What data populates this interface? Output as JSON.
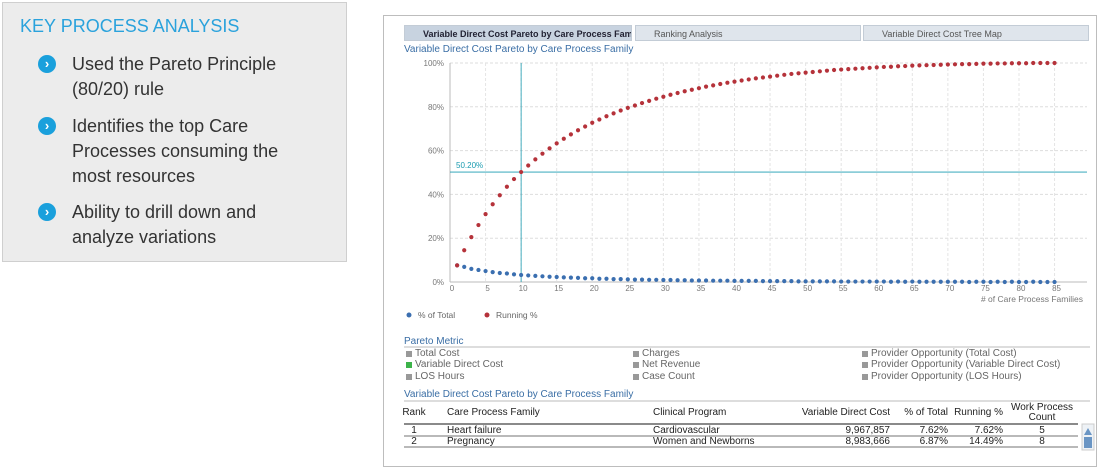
{
  "panel": {
    "title": "KEY PROCESS ANALYSIS",
    "bullets": [
      "Used the Pareto Principle (80/20) rule",
      "Identifies the top Care Processes consuming the most resources",
      "Ability to drill down and analyze variations"
    ]
  },
  "tabs": [
    "Variable Direct Cost Pareto by Care Process Family",
    "Ranking Analysis",
    "Variable Direct Cost Tree Map"
  ],
  "chart_data": {
    "type": "scatter",
    "title": "Variable Direct Cost Pareto by Care Process Family",
    "x_label": "# of Care Process Families",
    "x": [
      1,
      2,
      3,
      4,
      5,
      6,
      7,
      8,
      9,
      10,
      11,
      12,
      13,
      14,
      15,
      16,
      17,
      18,
      19,
      20,
      21,
      22,
      23,
      24,
      25,
      26,
      27,
      28,
      29,
      30,
      31,
      32,
      33,
      34,
      35,
      36,
      37,
      38,
      39,
      40,
      41,
      42,
      43,
      44,
      45,
      46,
      47,
      48,
      49,
      50,
      51,
      52,
      53,
      54,
      55,
      56,
      57,
      58,
      59,
      60,
      61,
      62,
      63,
      64,
      65,
      66,
      67,
      68,
      69,
      70,
      71,
      72,
      73,
      74,
      75,
      76,
      77,
      78,
      79,
      80,
      81,
      82,
      83,
      84,
      85
    ],
    "series": [
      {
        "name": "% of Total",
        "color": "#3b6fb0",
        "values": [
          7.6,
          6.9,
          6.0,
          5.5,
          5.0,
          4.5,
          4.1,
          3.9,
          3.5,
          3.2,
          3.0,
          2.8,
          2.6,
          2.4,
          2.3,
          2.1,
          2.0,
          1.9,
          1.7,
          1.7,
          1.5,
          1.5,
          1.3,
          1.3,
          1.2,
          1.1,
          1.1,
          1.0,
          1.0,
          0.9,
          0.9,
          0.8,
          0.8,
          0.7,
          0.7,
          0.7,
          0.6,
          0.6,
          0.6,
          0.5,
          0.5,
          0.5,
          0.5,
          0.4,
          0.4,
          0.4,
          0.4,
          0.4,
          0.3,
          0.3,
          0.3,
          0.3,
          0.3,
          0.3,
          0.2,
          0.2,
          0.2,
          0.2,
          0.2,
          0.2,
          0.2,
          0.1,
          0.2,
          0.1,
          0.2,
          0.1,
          0.1,
          0.1,
          0.1,
          0.1,
          0.1,
          0.1,
          0,
          0.1,
          0.1,
          0,
          0.1,
          0,
          0.1,
          0,
          0,
          0.1,
          0,
          0,
          0
        ]
      },
      {
        "name": "Running %",
        "color": "#b5323a",
        "values": [
          7.6,
          14.5,
          20.5,
          26.0,
          31.0,
          35.5,
          39.6,
          43.5,
          47.0,
          50.2,
          53.2,
          56.0,
          58.6,
          61.0,
          63.3,
          65.4,
          67.4,
          69.3,
          71.0,
          72.7,
          74.2,
          75.7,
          77.0,
          78.3,
          79.5,
          80.6,
          81.7,
          82.7,
          83.7,
          84.6,
          85.5,
          86.3,
          87.1,
          87.8,
          88.5,
          89.2,
          89.8,
          90.4,
          91.0,
          91.5,
          92.0,
          92.5,
          93.0,
          93.4,
          93.8,
          94.2,
          94.6,
          95.0,
          95.3,
          95.6,
          95.9,
          96.2,
          96.5,
          96.8,
          97.0,
          97.2,
          97.4,
          97.6,
          97.8,
          98.0,
          98.2,
          98.3,
          98.5,
          98.6,
          98.8,
          98.9,
          99.0,
          99.1,
          99.2,
          99.3,
          99.4,
          99.5,
          99.5,
          99.6,
          99.7,
          99.7,
          99.8,
          99.8,
          99.9,
          99.9,
          99.9,
          100,
          100,
          100,
          100
        ]
      }
    ],
    "xlim": [
      0,
      89
    ],
    "ylim": [
      0,
      100
    ],
    "xticks": [
      0,
      5,
      10,
      15,
      20,
      25,
      30,
      35,
      40,
      45,
      50,
      55,
      60,
      65,
      70,
      75,
      80,
      85
    ],
    "yticks": [
      {
        "value": 0,
        "label": "0%"
      },
      {
        "value": 20,
        "label": "20%"
      },
      {
        "value": 40,
        "label": "40%"
      },
      {
        "value": 60,
        "label": "60%"
      },
      {
        "value": 80,
        "label": "80%"
      },
      {
        "value": 100,
        "label": "100%"
      }
    ],
    "grid": true,
    "crosshair": {
      "x": 10,
      "y": 50.2,
      "label": "50.20%",
      "color": "#1a9bb0"
    }
  },
  "metric": {
    "title": "Pareto Metric",
    "options": [
      "Total Cost",
      "Charges",
      "Provider Opportunity (Total Cost)",
      "Variable Direct Cost",
      "Net Revenue",
      "Provider Opportunity (Variable Direct Cost)",
      "LOS Hours",
      "Case Count",
      "Provider Opportunity (LOS Hours)"
    ],
    "selected": 3
  },
  "table": {
    "title": "Variable Direct Cost Pareto by Care Process Family",
    "columns": [
      "Rank",
      "Care Process Family",
      "Clinical Program",
      "Variable Direct Cost",
      "% of Total",
      "Running %",
      "Work Process Count"
    ],
    "rows": [
      [
        "1",
        "Heart failure",
        "Cardiovascular",
        "9,967,857",
        "7.62%",
        "7.62%",
        "5"
      ],
      [
        "2",
        "Pregnancy",
        "Women and Newborns",
        "8,983,666",
        "6.87%",
        "14.49%",
        "8"
      ]
    ]
  }
}
